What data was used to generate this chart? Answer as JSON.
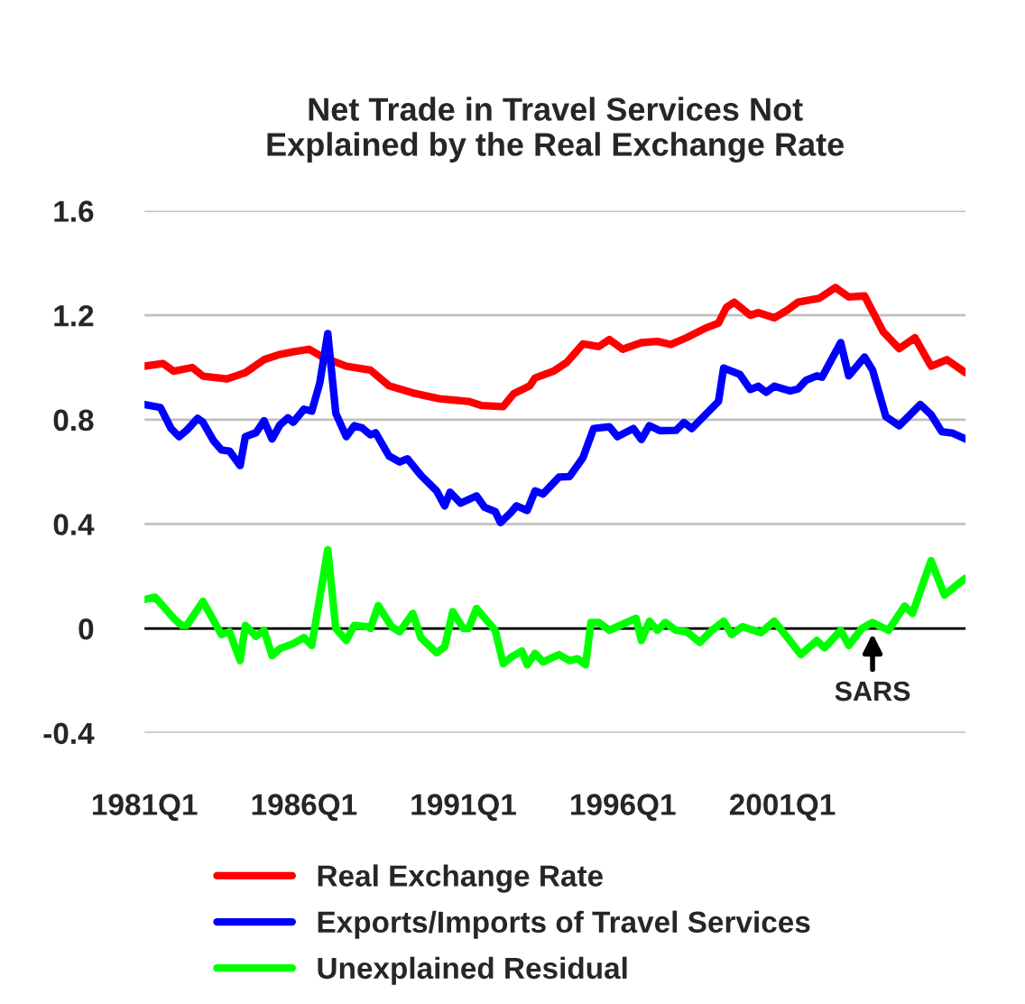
{
  "chart_data": {
    "type": "line",
    "title": "Net Trade in Travel Services Not\nExplained by the Real Exchange Rate",
    "xlim": [
      "1981-01",
      "2006-10"
    ],
    "xticks": [
      {
        "value": "1981-01",
        "label": "1981Q1"
      },
      {
        "value": "1986-01",
        "label": "1986Q1"
      },
      {
        "value": "1991-01",
        "label": "1991Q1"
      },
      {
        "value": "1996-01",
        "label": "1996Q1"
      },
      {
        "value": "2001-01",
        "label": "2001Q1"
      }
    ],
    "ylim": [
      -0.4,
      1.6
    ],
    "yticks": [
      {
        "value": -0.4,
        "label": "-0.4"
      },
      {
        "value": 0,
        "label": "0"
      },
      {
        "value": 0.4,
        "label": "0.4"
      },
      {
        "value": 0.8,
        "label": "0.8"
      },
      {
        "value": 1.2,
        "label": "1.2"
      },
      {
        "value": 1.6,
        "label": "1.6"
      }
    ],
    "grid": "y",
    "legend": "bottom",
    "marker": "none",
    "line_style": "solid",
    "ref_lines": [
      {
        "axis": "y",
        "value": 0,
        "color": "#000000"
      }
    ],
    "annotations": [
      {
        "text": "SARS",
        "x": "2003-11",
        "y": 0
      }
    ],
    "series": [
      {
        "name": "Real Exchange Rate",
        "color": "#ff0000",
        "x": [
          "1981-01",
          "1981-08",
          "1981-12",
          "1982-07",
          "1982-11",
          "1983-08",
          "1984-03",
          "1984-10",
          "1985-04",
          "1985-09",
          "1986-03",
          "1986-08",
          "1987-05",
          "1988-02",
          "1988-09",
          "1989-07",
          "1990-04",
          "1991-03",
          "1991-08",
          "1992-04",
          "1992-08",
          "1993-02",
          "1993-04",
          "1993-11",
          "1994-04",
          "1994-10",
          "1995-04",
          "1995-08",
          "1996-01",
          "1996-08",
          "1997-02",
          "1997-07",
          "1998-01",
          "1998-08",
          "1999-01",
          "1999-04",
          "1999-07",
          "2000-01",
          "2000-04",
          "2000-10",
          "2001-03",
          "2001-07",
          "2002-03",
          "2002-09",
          "2003-02",
          "2003-08",
          "2004-03",
          "2004-09",
          "2005-03",
          "2005-09",
          "2006-03",
          "2006-10"
        ],
        "values": [
          1.005,
          1.015,
          0.986,
          1.0,
          0.967,
          0.956,
          0.98,
          1.03,
          1.05,
          1.06,
          1.07,
          1.04,
          1.005,
          0.99,
          0.93,
          0.9,
          0.88,
          0.87,
          0.854,
          0.85,
          0.9,
          0.93,
          0.96,
          0.986,
          1.02,
          1.09,
          1.08,
          1.107,
          1.07,
          1.095,
          1.1,
          1.088,
          1.114,
          1.15,
          1.17,
          1.23,
          1.25,
          1.2,
          1.21,
          1.19,
          1.22,
          1.25,
          1.265,
          1.306,
          1.27,
          1.274,
          1.137,
          1.072,
          1.114,
          1.005,
          1.03,
          0.98
        ]
      },
      {
        "name": "Exports/Imports of Travel Services",
        "color": "#0000ff",
        "x": [
          "1981-01",
          "1981-07",
          "1981-11",
          "1982-02",
          "1982-05",
          "1982-09",
          "1982-11",
          "1983-03",
          "1983-06",
          "1983-09",
          "1984-01",
          "1984-03",
          "1984-07",
          "1984-10",
          "1985-01",
          "1985-04",
          "1985-07",
          "1985-09",
          "1986-01",
          "1986-04",
          "1986-07",
          "1986-10",
          "1987-01",
          "1987-05",
          "1987-08",
          "1987-11",
          "1988-02",
          "1988-04",
          "1988-09",
          "1989-01",
          "1989-04",
          "1989-09",
          "1990-03",
          "1990-06",
          "1990-08",
          "1990-12",
          "1991-06",
          "1991-09",
          "1992-01",
          "1992-03",
          "1992-07",
          "1992-09",
          "1993-01",
          "1993-04",
          "1993-07",
          "1994-01",
          "1994-05",
          "1994-10",
          "1995-02",
          "1995-08",
          "1995-11",
          "1996-05",
          "1996-08",
          "1996-11",
          "1997-03",
          "1997-09",
          "1997-12",
          "1998-03",
          "1999-01",
          "1999-03",
          "1999-09",
          "2000-01",
          "2000-04",
          "2000-07",
          "2000-10",
          "2001-04",
          "2001-07",
          "2001-10",
          "2002-02",
          "2002-04",
          "2002-11",
          "2003-02",
          "2003-08",
          "2003-11",
          "2004-04",
          "2004-09",
          "2005-05",
          "2005-09",
          "2006-01",
          "2006-05",
          "2006-10"
        ],
        "values": [
          0.858,
          0.847,
          0.766,
          0.735,
          0.76,
          0.805,
          0.79,
          0.72,
          0.684,
          0.68,
          0.624,
          0.735,
          0.75,
          0.796,
          0.726,
          0.78,
          0.807,
          0.79,
          0.84,
          0.833,
          0.94,
          1.13,
          0.824,
          0.735,
          0.777,
          0.768,
          0.742,
          0.75,
          0.661,
          0.638,
          0.65,
          0.587,
          0.527,
          0.47,
          0.522,
          0.48,
          0.508,
          0.464,
          0.448,
          0.406,
          0.445,
          0.47,
          0.452,
          0.527,
          0.515,
          0.58,
          0.582,
          0.654,
          0.766,
          0.773,
          0.735,
          0.766,
          0.724,
          0.777,
          0.758,
          0.759,
          0.789,
          0.766,
          0.87,
          0.998,
          0.974,
          0.916,
          0.928,
          0.905,
          0.928,
          0.91,
          0.918,
          0.951,
          0.968,
          0.963,
          1.095,
          0.968,
          1.04,
          0.99,
          0.812,
          0.777,
          0.858,
          0.819,
          0.754,
          0.749,
          0.726
        ]
      },
      {
        "name": "Unexplained Residual",
        "color": "#00ff00",
        "x": [
          "1981-01",
          "1981-05",
          "1981-08",
          "1981-12",
          "1982-03",
          "1982-05",
          "1982-11",
          "1983-06",
          "1983-09",
          "1984-01",
          "1984-03",
          "1984-07",
          "1984-10",
          "1985-01",
          "1985-04",
          "1985-09",
          "1986-01",
          "1986-04",
          "1986-10",
          "1987-01",
          "1987-05",
          "1987-08",
          "1988-01",
          "1988-02",
          "1988-05",
          "1988-10",
          "1989-01",
          "1989-06",
          "1989-09",
          "1990-03",
          "1990-06",
          "1990-09",
          "1991-01",
          "1991-03",
          "1991-06",
          "1992-01",
          "1992-04",
          "1992-07",
          "1992-11",
          "1993-01",
          "1993-04",
          "1993-07",
          "1994-01",
          "1994-05",
          "1994-08",
          "1994-11",
          "1995-01",
          "1995-04",
          "1995-08",
          "1995-12",
          "1996-06",
          "1996-08",
          "1996-11",
          "1997-02",
          "1997-05",
          "1997-09",
          "1998-01",
          "1998-06",
          "1998-10",
          "1999-03",
          "1999-06",
          "1999-10",
          "2000-05",
          "2000-10",
          "2001-03",
          "2001-08",
          "2002-02",
          "2002-05",
          "2002-11",
          "2003-02",
          "2003-07",
          "2003-11",
          "2004-05",
          "2004-11",
          "2005-02",
          "2005-09",
          "2006-02",
          "2006-10"
        ],
        "values": [
          0.111,
          0.12,
          0.086,
          0.039,
          0.012,
          0.012,
          0.104,
          -0.023,
          -0.012,
          -0.123,
          0.012,
          -0.03,
          -0.007,
          -0.104,
          -0.077,
          -0.058,
          -0.035,
          -0.065,
          0.302,
          0,
          -0.046,
          0.012,
          0.007,
          0,
          0.088,
          0.007,
          -0.012,
          0.058,
          -0.035,
          -0.093,
          -0.07,
          0.065,
          0,
          0,
          0.077,
          -0.007,
          -0.135,
          -0.11,
          -0.086,
          -0.139,
          -0.095,
          -0.128,
          -0.1,
          -0.123,
          -0.116,
          -0.139,
          0.023,
          0.023,
          -0.007,
          0.012,
          0.039,
          -0.046,
          0.028,
          -0.007,
          0.023,
          -0.007,
          -0.012,
          -0.053,
          -0.012,
          0.028,
          -0.023,
          0.007,
          -0.016,
          0.028,
          -0.035,
          -0.1,
          -0.046,
          -0.074,
          -0.007,
          -0.065,
          0,
          0.023,
          -0.007,
          0.086,
          0.058,
          0.26,
          0.128,
          0.193
        ]
      }
    ]
  }
}
